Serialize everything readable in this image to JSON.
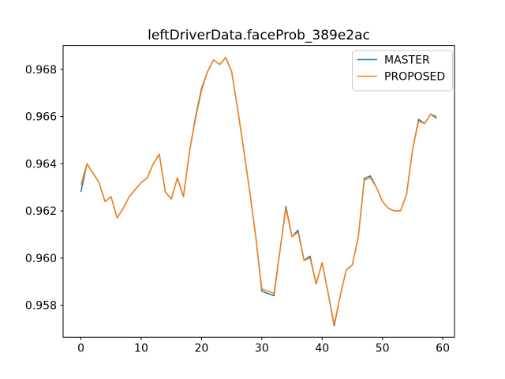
{
  "window": {
    "background": "#ffffff"
  },
  "colors": {
    "master": "#1f77b4",
    "proposed": "#ff7f0e",
    "axes": "#000000",
    "legend_border": "#cccccc",
    "legend_face": "#ffffff"
  },
  "legend": {
    "entries": [
      {
        "label": "MASTER",
        "color": "#1f77b4"
      },
      {
        "label": "PROPOSED",
        "color": "#ff7f0e"
      }
    ],
    "position": "upper right"
  },
  "chart_data": {
    "type": "line",
    "title": "leftDriverData.faceProb_389e2ac",
    "xlabel": "",
    "ylabel": "",
    "grid": false,
    "xlim": [
      -2.95,
      61.95
    ],
    "ylim": [
      0.95664,
      0.96901
    ],
    "xticks": [
      0,
      10,
      20,
      30,
      40,
      50,
      60
    ],
    "xtick_labels": [
      "0",
      "10",
      "20",
      "30",
      "40",
      "50",
      "60"
    ],
    "yticks": [
      0.958,
      0.96,
      0.962,
      0.964,
      0.966,
      0.968
    ],
    "ytick_labels": [
      "0.958",
      "0.960",
      "0.962",
      "0.964",
      "0.966",
      "0.968"
    ],
    "x": [
      0,
      1,
      2,
      3,
      4,
      5,
      6,
      7,
      8,
      9,
      10,
      11,
      12,
      13,
      14,
      15,
      16,
      17,
      18,
      19,
      20,
      21,
      22,
      23,
      24,
      25,
      26,
      27,
      28,
      29,
      30,
      31,
      32,
      33,
      34,
      35,
      36,
      37,
      38,
      39,
      40,
      41,
      42,
      43,
      44,
      45,
      46,
      47,
      48,
      49,
      50,
      51,
      52,
      53,
      54,
      55,
      56,
      57,
      58,
      59
    ],
    "series": [
      {
        "name": "MASTER",
        "color": "#1f77b4",
        "values": [
          0.9628,
          0.964,
          0.9636,
          0.9632,
          0.9624,
          0.9626,
          0.9617,
          0.9621,
          0.9626,
          0.9629,
          0.9632,
          0.9634,
          0.964,
          0.9644,
          0.9628,
          0.9625,
          0.9634,
          0.9626,
          0.9645,
          0.96598,
          0.96718,
          0.9679,
          0.9684,
          0.9682,
          0.9685,
          0.9679,
          0.9663,
          0.9646,
          0.9628,
          0.9609,
          0.9586,
          0.9585,
          0.9584,
          0.9603,
          0.96218,
          0.9609,
          0.96118,
          0.9599,
          0.96008,
          0.9589,
          0.9598,
          0.9585,
          0.95712,
          0.9584,
          0.9595,
          0.9597,
          0.9609,
          0.96338,
          0.96348,
          0.963,
          0.9624,
          0.9621,
          0.962,
          0.962,
          0.9627,
          0.9646,
          0.96588,
          0.9657,
          0.9661,
          0.96592
        ]
      },
      {
        "name": "PROPOSED",
        "color": "#ff7f0e",
        "values": [
          0.9631,
          0.964,
          0.9636,
          0.9632,
          0.9624,
          0.9626,
          0.9617,
          0.9621,
          0.9626,
          0.9629,
          0.9632,
          0.9634,
          0.964,
          0.9644,
          0.9628,
          0.9625,
          0.9634,
          0.9626,
          0.9645,
          0.9659,
          0.9671,
          0.9679,
          0.9684,
          0.9682,
          0.9685,
          0.9679,
          0.9663,
          0.9646,
          0.9628,
          0.9609,
          0.9587,
          0.9586,
          0.9585,
          0.9603,
          0.9621,
          0.9609,
          0.9611,
          0.9599,
          0.96,
          0.9589,
          0.9598,
          0.9585,
          0.9572,
          0.9584,
          0.9595,
          0.9597,
          0.9609,
          0.9633,
          0.9634,
          0.963,
          0.9624,
          0.9621,
          0.962,
          0.962,
          0.9627,
          0.9646,
          0.9658,
          0.9657,
          0.9661,
          0.966
        ]
      }
    ],
    "legend_entries": [
      "MASTER",
      "PROPOSED"
    ]
  }
}
